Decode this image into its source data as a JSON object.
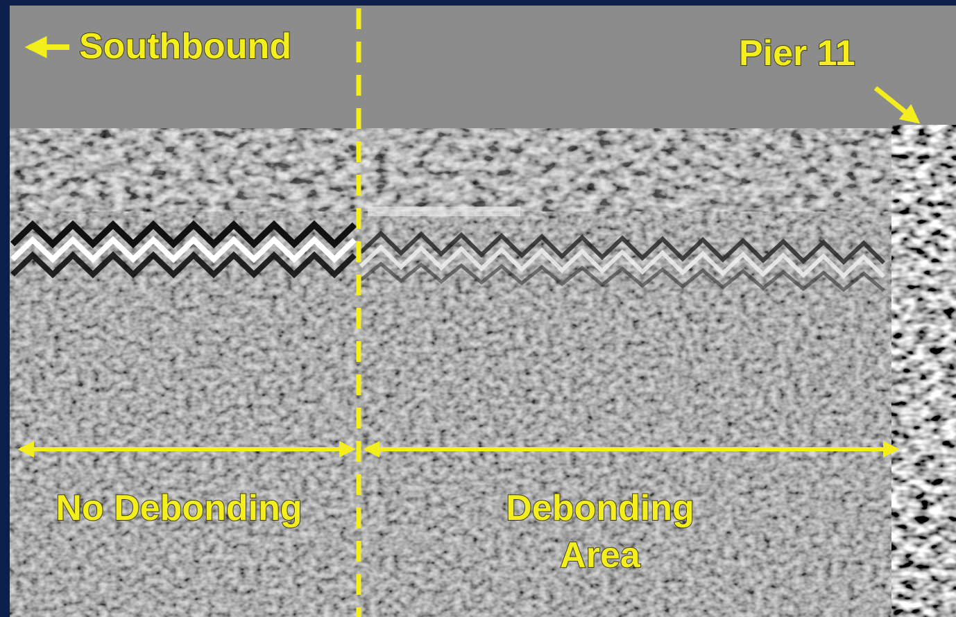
{
  "annotations": {
    "direction": "Southbound",
    "pier": "Pier 11",
    "left_region": "No Debonding",
    "right_region": [
      "Debonding",
      "Area"
    ]
  }
}
